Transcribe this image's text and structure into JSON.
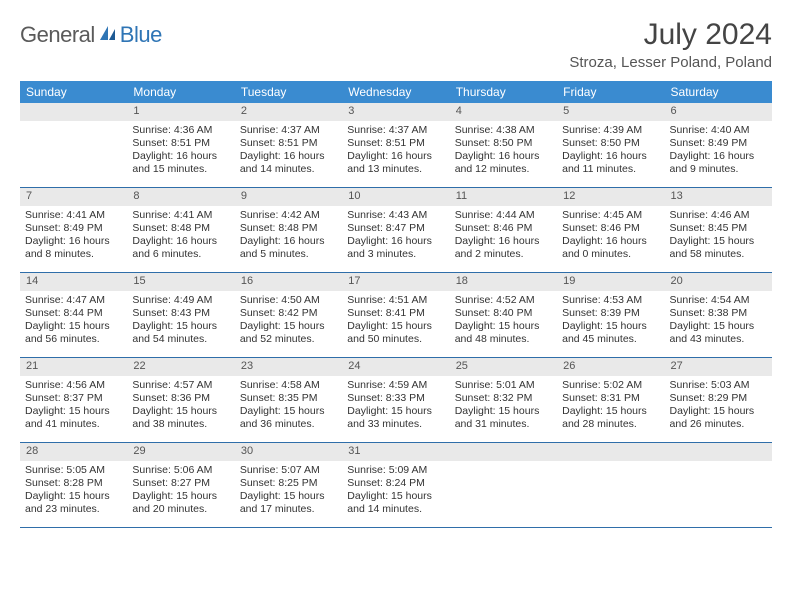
{
  "brand": {
    "part1": "General",
    "part2": "Blue"
  },
  "title": "July 2024",
  "location": "Stroza, Lesser Poland, Poland",
  "colors": {
    "header_bg": "#3a8bd0",
    "week_border": "#2f6ea9",
    "daynum_bg": "#e9e9e9",
    "text": "#333333",
    "brand_blue": "#2f75b5",
    "brand_gray": "#5a5a5a"
  },
  "dow": [
    "Sunday",
    "Monday",
    "Tuesday",
    "Wednesday",
    "Thursday",
    "Friday",
    "Saturday"
  ],
  "weeks": [
    [
      {
        "n": "",
        "lines": []
      },
      {
        "n": "1",
        "lines": [
          "Sunrise: 4:36 AM",
          "Sunset: 8:51 PM",
          "Daylight: 16 hours",
          "and 15 minutes."
        ]
      },
      {
        "n": "2",
        "lines": [
          "Sunrise: 4:37 AM",
          "Sunset: 8:51 PM",
          "Daylight: 16 hours",
          "and 14 minutes."
        ]
      },
      {
        "n": "3",
        "lines": [
          "Sunrise: 4:37 AM",
          "Sunset: 8:51 PM",
          "Daylight: 16 hours",
          "and 13 minutes."
        ]
      },
      {
        "n": "4",
        "lines": [
          "Sunrise: 4:38 AM",
          "Sunset: 8:50 PM",
          "Daylight: 16 hours",
          "and 12 minutes."
        ]
      },
      {
        "n": "5",
        "lines": [
          "Sunrise: 4:39 AM",
          "Sunset: 8:50 PM",
          "Daylight: 16 hours",
          "and 11 minutes."
        ]
      },
      {
        "n": "6",
        "lines": [
          "Sunrise: 4:40 AM",
          "Sunset: 8:49 PM",
          "Daylight: 16 hours",
          "and 9 minutes."
        ]
      }
    ],
    [
      {
        "n": "7",
        "lines": [
          "Sunrise: 4:41 AM",
          "Sunset: 8:49 PM",
          "Daylight: 16 hours",
          "and 8 minutes."
        ]
      },
      {
        "n": "8",
        "lines": [
          "Sunrise: 4:41 AM",
          "Sunset: 8:48 PM",
          "Daylight: 16 hours",
          "and 6 minutes."
        ]
      },
      {
        "n": "9",
        "lines": [
          "Sunrise: 4:42 AM",
          "Sunset: 8:48 PM",
          "Daylight: 16 hours",
          "and 5 minutes."
        ]
      },
      {
        "n": "10",
        "lines": [
          "Sunrise: 4:43 AM",
          "Sunset: 8:47 PM",
          "Daylight: 16 hours",
          "and 3 minutes."
        ]
      },
      {
        "n": "11",
        "lines": [
          "Sunrise: 4:44 AM",
          "Sunset: 8:46 PM",
          "Daylight: 16 hours",
          "and 2 minutes."
        ]
      },
      {
        "n": "12",
        "lines": [
          "Sunrise: 4:45 AM",
          "Sunset: 8:46 PM",
          "Daylight: 16 hours",
          "and 0 minutes."
        ]
      },
      {
        "n": "13",
        "lines": [
          "Sunrise: 4:46 AM",
          "Sunset: 8:45 PM",
          "Daylight: 15 hours",
          "and 58 minutes."
        ]
      }
    ],
    [
      {
        "n": "14",
        "lines": [
          "Sunrise: 4:47 AM",
          "Sunset: 8:44 PM",
          "Daylight: 15 hours",
          "and 56 minutes."
        ]
      },
      {
        "n": "15",
        "lines": [
          "Sunrise: 4:49 AM",
          "Sunset: 8:43 PM",
          "Daylight: 15 hours",
          "and 54 minutes."
        ]
      },
      {
        "n": "16",
        "lines": [
          "Sunrise: 4:50 AM",
          "Sunset: 8:42 PM",
          "Daylight: 15 hours",
          "and 52 minutes."
        ]
      },
      {
        "n": "17",
        "lines": [
          "Sunrise: 4:51 AM",
          "Sunset: 8:41 PM",
          "Daylight: 15 hours",
          "and 50 minutes."
        ]
      },
      {
        "n": "18",
        "lines": [
          "Sunrise: 4:52 AM",
          "Sunset: 8:40 PM",
          "Daylight: 15 hours",
          "and 48 minutes."
        ]
      },
      {
        "n": "19",
        "lines": [
          "Sunrise: 4:53 AM",
          "Sunset: 8:39 PM",
          "Daylight: 15 hours",
          "and 45 minutes."
        ]
      },
      {
        "n": "20",
        "lines": [
          "Sunrise: 4:54 AM",
          "Sunset: 8:38 PM",
          "Daylight: 15 hours",
          "and 43 minutes."
        ]
      }
    ],
    [
      {
        "n": "21",
        "lines": [
          "Sunrise: 4:56 AM",
          "Sunset: 8:37 PM",
          "Daylight: 15 hours",
          "and 41 minutes."
        ]
      },
      {
        "n": "22",
        "lines": [
          "Sunrise: 4:57 AM",
          "Sunset: 8:36 PM",
          "Daylight: 15 hours",
          "and 38 minutes."
        ]
      },
      {
        "n": "23",
        "lines": [
          "Sunrise: 4:58 AM",
          "Sunset: 8:35 PM",
          "Daylight: 15 hours",
          "and 36 minutes."
        ]
      },
      {
        "n": "24",
        "lines": [
          "Sunrise: 4:59 AM",
          "Sunset: 8:33 PM",
          "Daylight: 15 hours",
          "and 33 minutes."
        ]
      },
      {
        "n": "25",
        "lines": [
          "Sunrise: 5:01 AM",
          "Sunset: 8:32 PM",
          "Daylight: 15 hours",
          "and 31 minutes."
        ]
      },
      {
        "n": "26",
        "lines": [
          "Sunrise: 5:02 AM",
          "Sunset: 8:31 PM",
          "Daylight: 15 hours",
          "and 28 minutes."
        ]
      },
      {
        "n": "27",
        "lines": [
          "Sunrise: 5:03 AM",
          "Sunset: 8:29 PM",
          "Daylight: 15 hours",
          "and 26 minutes."
        ]
      }
    ],
    [
      {
        "n": "28",
        "lines": [
          "Sunrise: 5:05 AM",
          "Sunset: 8:28 PM",
          "Daylight: 15 hours",
          "and 23 minutes."
        ]
      },
      {
        "n": "29",
        "lines": [
          "Sunrise: 5:06 AM",
          "Sunset: 8:27 PM",
          "Daylight: 15 hours",
          "and 20 minutes."
        ]
      },
      {
        "n": "30",
        "lines": [
          "Sunrise: 5:07 AM",
          "Sunset: 8:25 PM",
          "Daylight: 15 hours",
          "and 17 minutes."
        ]
      },
      {
        "n": "31",
        "lines": [
          "Sunrise: 5:09 AM",
          "Sunset: 8:24 PM",
          "Daylight: 15 hours",
          "and 14 minutes."
        ]
      },
      {
        "n": "",
        "lines": []
      },
      {
        "n": "",
        "lines": []
      },
      {
        "n": "",
        "lines": []
      }
    ]
  ]
}
